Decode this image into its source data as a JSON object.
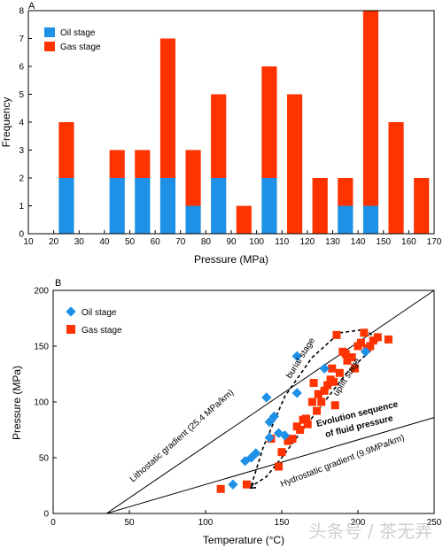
{
  "watermark": "头条号 / 茶无弄",
  "colors": {
    "oil": "#1e90e6",
    "gas": "#ff3300",
    "axis": "#000000"
  },
  "chart_data": [
    {
      "panel_label": "A",
      "type": "bar",
      "stacked": true,
      "xlabel": "Pressure (MPa)",
      "ylabel": "Frequency",
      "xlim": [
        10,
        170
      ],
      "ylim": [
        0,
        8
      ],
      "x_ticks": [
        10,
        20,
        30,
        40,
        50,
        60,
        70,
        80,
        90,
        100,
        110,
        120,
        130,
        140,
        150,
        160,
        170
      ],
      "y_ticks": [
        0,
        1,
        2,
        3,
        4,
        5,
        6,
        7,
        8
      ],
      "bin_width": 6,
      "x": [
        25,
        45,
        55,
        65,
        75,
        85,
        95,
        105,
        115,
        125,
        135,
        145,
        155,
        165
      ],
      "series": [
        {
          "name": "Oil stage",
          "values": [
            2,
            2,
            2,
            2,
            1,
            2,
            0,
            2,
            0,
            0,
            1,
            1,
            0,
            0
          ]
        },
        {
          "name": "Gas stage",
          "values": [
            2,
            1,
            1,
            5,
            2,
            3,
            1,
            4,
            5,
            2,
            1,
            7,
            4,
            2
          ]
        }
      ],
      "legend_position": "top-left"
    },
    {
      "panel_label": "B",
      "type": "scatter",
      "xlabel": "Temperature (°C)",
      "ylabel": "Pressure (MPa)",
      "xlim": [
        0,
        250
      ],
      "ylim": [
        0,
        200
      ],
      "x_ticks": [
        0,
        50,
        100,
        150,
        200,
        250
      ],
      "y_ticks": [
        0,
        50,
        100,
        150,
        200
      ],
      "legend_position": "top-left",
      "series": [
        {
          "name": "Oil stage",
          "marker": "diamond",
          "points": [
            [
              118,
              26
            ],
            [
              126,
              47
            ],
            [
              130,
              50
            ],
            [
              133,
              54
            ],
            [
              140,
              104
            ],
            [
              142,
              68
            ],
            [
              142,
              82
            ],
            [
              145,
              87
            ],
            [
              148,
              72
            ],
            [
              152,
              70
            ],
            [
              160,
              141
            ],
            [
              160,
              108
            ],
            [
              178,
              130
            ],
            [
              205,
              145
            ]
          ]
        },
        {
          "name": "Gas stage",
          "marker": "square",
          "points": [
            [
              110,
              22
            ],
            [
              127,
              26
            ],
            [
              143,
              67
            ],
            [
              148,
              42
            ],
            [
              150,
              55
            ],
            [
              154,
              65
            ],
            [
              157,
              67
            ],
            [
              160,
              78
            ],
            [
              162,
              75
            ],
            [
              164,
              84
            ],
            [
              166,
              85
            ],
            [
              167,
              80
            ],
            [
              170,
              100
            ],
            [
              171,
              117
            ],
            [
              173,
              92
            ],
            [
              174,
              107
            ],
            [
              176,
              100
            ],
            [
              178,
              110
            ],
            [
              180,
              115
            ],
            [
              182,
              120
            ],
            [
              183,
              130
            ],
            [
              184,
              118
            ],
            [
              185,
              97
            ],
            [
              186,
              160
            ],
            [
              188,
              126
            ],
            [
              190,
              145
            ],
            [
              192,
              143
            ],
            [
              193,
              137
            ],
            [
              196,
              140
            ],
            [
              198,
              130
            ],
            [
              200,
              150
            ],
            [
              202,
              153
            ],
            [
              204,
              162
            ],
            [
              206,
              148
            ],
            [
              208,
              150
            ],
            [
              210,
              155
            ],
            [
              213,
              158
            ],
            [
              220,
              156
            ]
          ]
        }
      ],
      "reference_lines": [
        {
          "label": "Lithostatic gradient (25.4 MPa/km)",
          "from": [
            35,
            0
          ],
          "to": [
            250,
            200
          ]
        },
        {
          "label": "Hydrostatic gradient (9.9MPa/km)",
          "from": [
            35,
            0
          ],
          "to": [
            250,
            86
          ]
        }
      ],
      "annotations": {
        "burial": "burial stage",
        "uplift": "uplift stage",
        "evolution_line1": "Evolution sequence",
        "evolution_line2": "of fluid pressure"
      }
    }
  ]
}
